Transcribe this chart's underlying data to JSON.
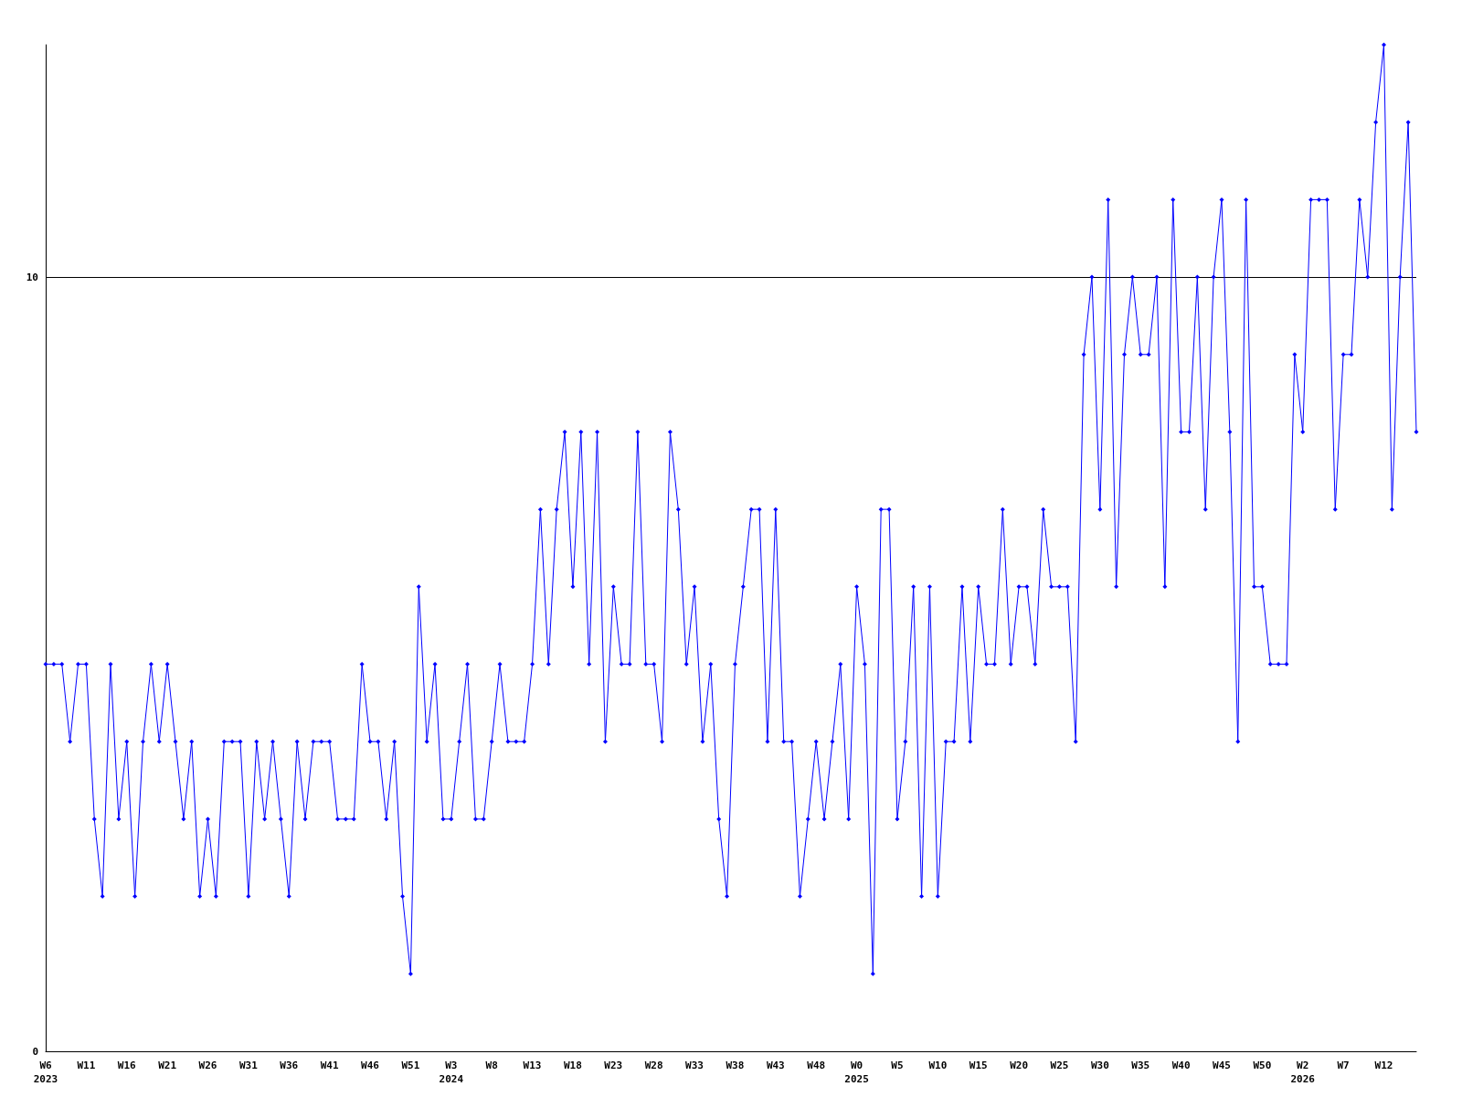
{
  "chart_data": {
    "type": "line",
    "categories": [
      "W6\n2023",
      null,
      null,
      null,
      null,
      "W11",
      null,
      null,
      null,
      null,
      "W16",
      null,
      null,
      null,
      null,
      "W21",
      null,
      null,
      null,
      null,
      "W26",
      null,
      null,
      null,
      null,
      "W31",
      null,
      null,
      null,
      null,
      "W36",
      null,
      null,
      null,
      null,
      "W41",
      null,
      null,
      null,
      null,
      "W46",
      null,
      null,
      null,
      null,
      "W51",
      null,
      null,
      null,
      null,
      "W3\n2024",
      null,
      null,
      null,
      null,
      "W8",
      null,
      null,
      null,
      null,
      "W13",
      null,
      null,
      null,
      null,
      "W18",
      null,
      null,
      null,
      null,
      "W23",
      null,
      null,
      null,
      null,
      "W28",
      null,
      null,
      null,
      null,
      "W33",
      null,
      null,
      null,
      null,
      "W38",
      null,
      null,
      null,
      null,
      "W43",
      null,
      null,
      null,
      null,
      "W48",
      null,
      null,
      null,
      null,
      "W0\n2025",
      null,
      null,
      null,
      null,
      "W5",
      null,
      null,
      null,
      null,
      "W10",
      null,
      null,
      null,
      null,
      "W15",
      null,
      null,
      null,
      null,
      "W20",
      null,
      null,
      null,
      null,
      "W25",
      null,
      null,
      null,
      null,
      "W30",
      null,
      null,
      null,
      null,
      "W35",
      null,
      null,
      null,
      null,
      "W40",
      null,
      null,
      null,
      null,
      "W45",
      null,
      null,
      null,
      null,
      "W50",
      null,
      null,
      null,
      null,
      "W2\n2026",
      null,
      null,
      null,
      null,
      "W7",
      null,
      null,
      null,
      null,
      "W12",
      null,
      null,
      null,
      null
    ],
    "series": [
      {
        "color": "#0000ff",
        "values": [
          5,
          5,
          5,
          4,
          5,
          5,
          3,
          2,
          5,
          3,
          4,
          2,
          4,
          5,
          4,
          5,
          4,
          3,
          4,
          2,
          3,
          2,
          4,
          4,
          4,
          2,
          4,
          3,
          4,
          3,
          2,
          4,
          3,
          4,
          4,
          4,
          3,
          3,
          3,
          5,
          4,
          4,
          3,
          4,
          2,
          1,
          6,
          4,
          5,
          3,
          3,
          4,
          5,
          3,
          3,
          4,
          5,
          4,
          4,
          4,
          5,
          7,
          5,
          7,
          8,
          6,
          8,
          5,
          8,
          4,
          6,
          5,
          5,
          8,
          5,
          5,
          4,
          8,
          7,
          5,
          6,
          4,
          5,
          3,
          2,
          5,
          6,
          7,
          7,
          4,
          7,
          4,
          4,
          2,
          3,
          4,
          3,
          4,
          5,
          3,
          6,
          5,
          1,
          7,
          7,
          3,
          4,
          6,
          2,
          6,
          2,
          4,
          4,
          6,
          4,
          6,
          5,
          5,
          7,
          5,
          6,
          6,
          5,
          7,
          6,
          6,
          6,
          4,
          9,
          10,
          7,
          11,
          6,
          9,
          10,
          9,
          9,
          10,
          6,
          11,
          8,
          8,
          10,
          7,
          10,
          11,
          8,
          4,
          11,
          6,
          6,
          5,
          5,
          5,
          9,
          8,
          11,
          11,
          11,
          7,
          9,
          9,
          11,
          10,
          12,
          13,
          7,
          10,
          12,
          8
        ]
      }
    ],
    "ylim": [
      0,
      13
    ],
    "yticks": [
      0,
      10
    ],
    "grid": "y",
    "marker": "diamond",
    "line_style": "solid"
  }
}
